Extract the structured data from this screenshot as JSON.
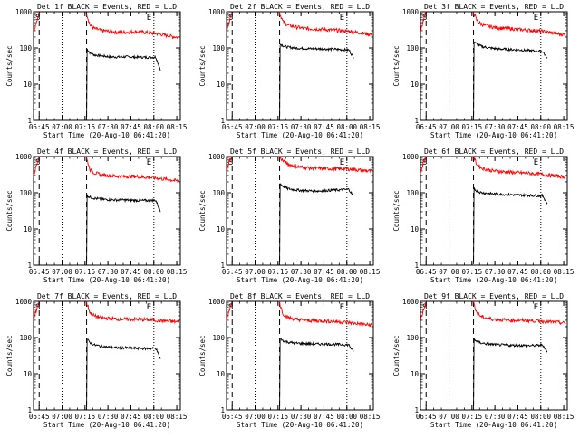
{
  "figure": {
    "x_tick_labels": [
      "06:45",
      "07:00",
      "07:15",
      "07:30",
      "07:45",
      "08:00",
      "08:15"
    ],
    "y_tick_labels": [
      "1",
      "10",
      "100",
      "1000"
    ],
    "x_axis_label": "Start Time (20-Aug-10 06:41:20)",
    "y_axis_label": "Counts/sec",
    "markers": {
      "start": "S",
      "end": "E"
    },
    "colors": {
      "events": "#000000",
      "lld": "#ff0000",
      "axes": "#000000"
    }
  },
  "chart_data": [
    {
      "type": "line",
      "title": "Det 1f BLACK = Events, RED = LLD",
      "xlabel": "Start Time (20-Aug-10 06:41:20)",
      "ylabel": "Counts/sec",
      "x_unit": "minutes since 06:41:20",
      "xlim": [
        0,
        96
      ],
      "ylim": [
        1,
        1000
      ],
      "yscale": "log",
      "grid": false,
      "dotted_vlines": [
        18.7,
        78.7
      ],
      "dashed_vlines": [
        3.7,
        34.7
      ],
      "series": [
        {
          "name": "Events",
          "color": "#000000",
          "x": [
            34.7,
            35,
            37,
            40,
            45,
            50,
            55,
            60,
            65,
            70,
            75,
            80,
            83
          ],
          "values": [
            1,
            95,
            72,
            64,
            60,
            57,
            56,
            57,
            56,
            55,
            55,
            56,
            25
          ]
        },
        {
          "name": "LLD",
          "color": "#ff0000",
          "x": [
            0,
            2,
            3.5,
            34.7,
            35,
            37,
            40,
            45,
            50,
            55,
            60,
            65,
            70,
            75,
            80,
            85,
            90,
            95
          ],
          "values": [
            250,
            500,
            1000,
            1000,
            800,
            420,
            340,
            300,
            285,
            270,
            270,
            280,
            275,
            265,
            250,
            230,
            210,
            195
          ]
        }
      ]
    },
    {
      "type": "line",
      "title": "Det 2f BLACK = Events, RED = LLD",
      "xlabel": "Start Time (20-Aug-10 06:41:20)",
      "ylabel": "Counts/sec",
      "x_unit": "minutes since 06:41:20",
      "xlim": [
        0,
        96
      ],
      "ylim": [
        1,
        1000
      ],
      "yscale": "log",
      "grid": false,
      "dotted_vlines": [
        18.7,
        78.7
      ],
      "dashed_vlines": [
        3.7,
        34.7
      ],
      "series": [
        {
          "name": "Events",
          "color": "#000000",
          "x": [
            34.7,
            35,
            37,
            40,
            45,
            50,
            55,
            60,
            65,
            70,
            75,
            80,
            83
          ],
          "values": [
            1,
            130,
            115,
            105,
            100,
            97,
            95,
            95,
            93,
            92,
            90,
            88,
            55
          ]
        },
        {
          "name": "LLD",
          "color": "#ff0000",
          "x": [
            0,
            2,
            3.5,
            34.7,
            35,
            37,
            40,
            45,
            50,
            55,
            60,
            65,
            70,
            75,
            80,
            85,
            90,
            95
          ],
          "values": [
            300,
            600,
            1000,
            1000,
            850,
            520,
            430,
            380,
            350,
            340,
            330,
            320,
            310,
            300,
            290,
            270,
            250,
            235
          ]
        }
      ]
    },
    {
      "type": "line",
      "title": "Det 3f BLACK = Events, RED = LLD",
      "xlabel": "Start Time (20-Aug-10 06:41:20)",
      "ylabel": "Counts/sec",
      "x_unit": "minutes since 06:41:20",
      "xlim": [
        0,
        96
      ],
      "ylim": [
        1,
        1000
      ],
      "yscale": "log",
      "grid": false,
      "dotted_vlines": [
        18.7,
        78.7
      ],
      "dashed_vlines": [
        3.7,
        34.7
      ],
      "series": [
        {
          "name": "Events",
          "color": "#000000",
          "x": [
            34.7,
            35,
            37,
            40,
            45,
            50,
            55,
            60,
            65,
            70,
            75,
            80,
            83
          ],
          "values": [
            1,
            150,
            125,
            110,
            100,
            95,
            92,
            90,
            88,
            85,
            82,
            80,
            50
          ]
        },
        {
          "name": "LLD",
          "color": "#ff0000",
          "x": [
            0,
            2,
            3.5,
            34.7,
            35,
            37,
            40,
            45,
            50,
            55,
            60,
            65,
            70,
            75,
            80,
            85,
            90,
            95
          ],
          "values": [
            300,
            600,
            1000,
            1000,
            900,
            560,
            450,
            390,
            360,
            345,
            335,
            320,
            310,
            300,
            285,
            265,
            245,
            230
          ]
        }
      ]
    },
    {
      "type": "line",
      "title": "Det 4f BLACK = Events, RED = LLD",
      "xlabel": "Start Time (20-Aug-10 06:41:20)",
      "ylabel": "Counts/sec",
      "x_unit": "minutes since 06:41:20",
      "xlim": [
        0,
        96
      ],
      "ylim": [
        1,
        1000
      ],
      "yscale": "log",
      "grid": false,
      "dotted_vlines": [
        18.7,
        78.7
      ],
      "dashed_vlines": [
        3.7,
        34.7
      ],
      "series": [
        {
          "name": "Events",
          "color": "#000000",
          "x": [
            34.7,
            35,
            37,
            40,
            45,
            50,
            55,
            60,
            65,
            70,
            75,
            80,
            83
          ],
          "values": [
            1,
            85,
            75,
            70,
            66,
            64,
            63,
            63,
            62,
            61,
            61,
            62,
            30
          ]
        },
        {
          "name": "LLD",
          "color": "#ff0000",
          "x": [
            0,
            2,
            3.5,
            34.7,
            35,
            37,
            40,
            45,
            50,
            55,
            60,
            65,
            70,
            75,
            80,
            85,
            90,
            95
          ],
          "values": [
            300,
            600,
            1000,
            1000,
            800,
            430,
            350,
            310,
            295,
            285,
            280,
            285,
            275,
            265,
            255,
            240,
            225,
            210
          ]
        }
      ]
    },
    {
      "type": "line",
      "title": "Det 5f BLACK = Events, RED = LLD",
      "xlabel": "Start Time (20-Aug-10 06:41:20)",
      "ylabel": "Counts/sec",
      "x_unit": "minutes since 06:41:20",
      "xlim": [
        0,
        96
      ],
      "ylim": [
        1,
        1000
      ],
      "yscale": "log",
      "grid": false,
      "dotted_vlines": [
        18.7,
        78.7
      ],
      "dashed_vlines": [
        3.7,
        34.7
      ],
      "series": [
        {
          "name": "Events",
          "color": "#000000",
          "x": [
            34.7,
            35,
            37,
            40,
            45,
            50,
            55,
            60,
            65,
            70,
            75,
            80,
            83
          ],
          "values": [
            1,
            180,
            150,
            130,
            120,
            115,
            113,
            112,
            115,
            118,
            120,
            125,
            80
          ]
        },
        {
          "name": "LLD",
          "color": "#ff0000",
          "x": [
            0,
            2,
            3.5,
            34.7,
            35,
            37,
            40,
            45,
            50,
            55,
            60,
            65,
            70,
            75,
            80,
            85,
            90,
            95
          ],
          "values": [
            400,
            800,
            1000,
            1000,
            950,
            750,
            620,
            540,
            500,
            480,
            470,
            465,
            460,
            455,
            450,
            430,
            410,
            395
          ]
        }
      ]
    },
    {
      "type": "line",
      "title": "Det 6f BLACK = Events, RED = LLD",
      "xlabel": "Start Time (20-Aug-10 06:41:20)",
      "ylabel": "Counts/sec",
      "x_unit": "minutes since 06:41:20",
      "xlim": [
        0,
        96
      ],
      "ylim": [
        1,
        1000
      ],
      "yscale": "log",
      "grid": false,
      "dotted_vlines": [
        18.7,
        78.7
      ],
      "dashed_vlines": [
        3.7,
        34.7
      ],
      "series": [
        {
          "name": "Events",
          "color": "#000000",
          "x": [
            34.7,
            35,
            37,
            40,
            45,
            50,
            55,
            60,
            65,
            70,
            75,
            80,
            83
          ],
          "values": [
            1,
            130,
            110,
            100,
            95,
            92,
            90,
            88,
            86,
            85,
            83,
            82,
            50
          ]
        },
        {
          "name": "LLD",
          "color": "#ff0000",
          "x": [
            0,
            2,
            3.5,
            34.7,
            35,
            37,
            40,
            45,
            50,
            55,
            60,
            65,
            70,
            75,
            80,
            85,
            90,
            95
          ],
          "values": [
            350,
            700,
            1000,
            1000,
            900,
            600,
            480,
            420,
            390,
            375,
            365,
            355,
            345,
            335,
            320,
            300,
            285,
            270
          ]
        }
      ]
    },
    {
      "type": "line",
      "title": "Det 7f BLACK = Events, RED = LLD",
      "xlabel": "Start Time (20-Aug-10 06:41:20)",
      "ylabel": "Counts/sec",
      "x_unit": "minutes since 06:41:20",
      "xlim": [
        0,
        96
      ],
      "ylim": [
        1,
        1000
      ],
      "yscale": "log",
      "grid": false,
      "dotted_vlines": [
        18.7,
        78.7
      ],
      "dashed_vlines": [
        3.7,
        34.7
      ],
      "series": [
        {
          "name": "Events",
          "color": "#000000",
          "x": [
            34.7,
            35,
            37,
            40,
            45,
            50,
            55,
            60,
            65,
            70,
            75,
            80,
            83
          ],
          "values": [
            1,
            90,
            72,
            62,
            57,
            54,
            52,
            52,
            51,
            50,
            50,
            51,
            25
          ]
        },
        {
          "name": "LLD",
          "color": "#ff0000",
          "x": [
            0,
            2,
            3.5,
            34.7,
            35,
            37,
            40,
            45,
            50,
            55,
            60,
            65,
            70,
            75,
            80,
            85,
            90,
            95
          ],
          "values": [
            300,
            600,
            1000,
            1000,
            850,
            480,
            390,
            350,
            335,
            325,
            320,
            320,
            315,
            310,
            300,
            290,
            280,
            270
          ]
        }
      ]
    },
    {
      "type": "line",
      "title": "Det 8f BLACK = Events, RED = LLD",
      "xlabel": "Start Time (20-Aug-10 06:41:20)",
      "ylabel": "Counts/sec",
      "x_unit": "minutes since 06:41:20",
      "xlim": [
        0,
        96
      ],
      "ylim": [
        1,
        1000
      ],
      "yscale": "log",
      "grid": false,
      "dotted_vlines": [
        18.7,
        78.7
      ],
      "dashed_vlines": [
        3.7,
        34.7
      ],
      "series": [
        {
          "name": "Events",
          "color": "#000000",
          "x": [
            34.7,
            35,
            37,
            40,
            45,
            50,
            55,
            60,
            65,
            70,
            75,
            80,
            83
          ],
          "values": [
            1,
            95,
            82,
            75,
            70,
            68,
            67,
            66,
            66,
            65,
            64,
            63,
            40
          ]
        },
        {
          "name": "LLD",
          "color": "#ff0000",
          "x": [
            0,
            2,
            3.5,
            34.7,
            35,
            37,
            40,
            45,
            50,
            55,
            60,
            65,
            70,
            75,
            80,
            85,
            90,
            95
          ],
          "values": [
            300,
            600,
            1000,
            1000,
            800,
            450,
            360,
            320,
            305,
            295,
            290,
            285,
            280,
            270,
            260,
            245,
            230,
            220
          ]
        }
      ]
    },
    {
      "type": "line",
      "title": "Det 9f BLACK = Events, RED = LLD",
      "xlabel": "Start Time (20-Aug-10 06:41:20)",
      "ylabel": "Counts/sec",
      "x_unit": "minutes since 06:41:20",
      "xlim": [
        0,
        96
      ],
      "ylim": [
        1,
        1000
      ],
      "yscale": "log",
      "grid": false,
      "dotted_vlines": [
        18.7,
        78.7
      ],
      "dashed_vlines": [
        3.7,
        34.7
      ],
      "series": [
        {
          "name": "Events",
          "color": "#000000",
          "x": [
            34.7,
            35,
            37,
            40,
            45,
            50,
            55,
            60,
            65,
            70,
            75,
            80,
            83
          ],
          "values": [
            1,
            90,
            78,
            70,
            66,
            63,
            62,
            61,
            61,
            60,
            60,
            62,
            40
          ]
        },
        {
          "name": "LLD",
          "color": "#ff0000",
          "x": [
            0,
            2,
            3.5,
            34.7,
            35,
            37,
            40,
            45,
            50,
            55,
            60,
            65,
            70,
            75,
            80,
            85,
            90,
            95
          ],
          "values": [
            300,
            600,
            1000,
            1000,
            850,
            470,
            370,
            330,
            315,
            305,
            300,
            300,
            295,
            290,
            280,
            270,
            260,
            250
          ]
        }
      ]
    }
  ]
}
